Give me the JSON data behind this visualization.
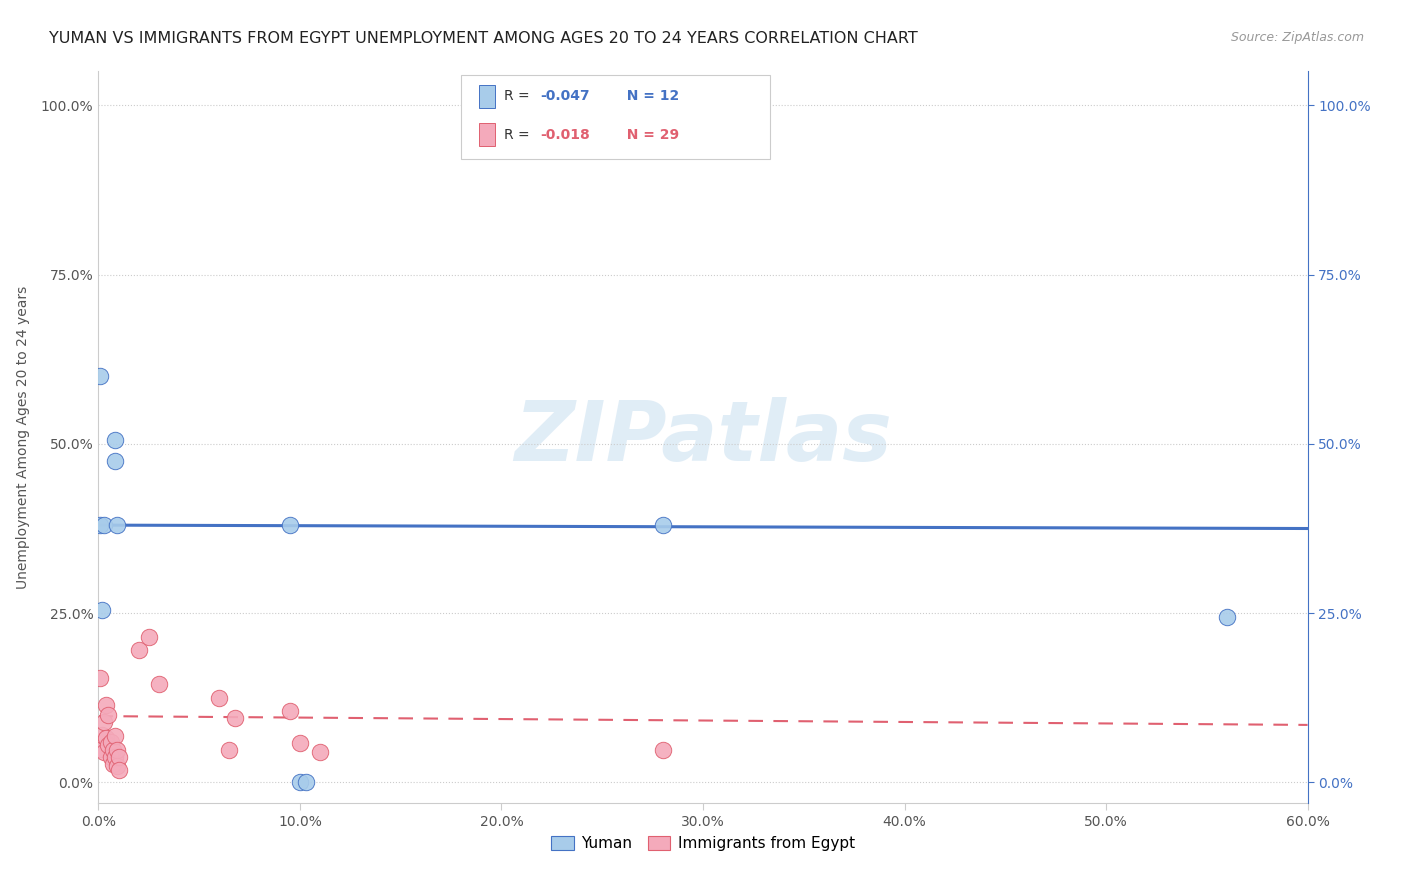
{
  "title": "YUMAN VS IMMIGRANTS FROM EGYPT UNEMPLOYMENT AMONG AGES 20 TO 24 YEARS CORRELATION CHART",
  "source": "Source: ZipAtlas.com",
  "ylabel": "Unemployment Among Ages 20 to 24 years",
  "xlim": [
    0.0,
    0.6
  ],
  "ylim": [
    -0.03,
    1.05
  ],
  "yuman_color": "#A8CCEA",
  "egypt_color": "#F4AABB",
  "yuman_line_color": "#4472C4",
  "egypt_line_color": "#E06070",
  "yuman_x": [
    0.001,
    0.001,
    0.002,
    0.003,
    0.008,
    0.008,
    0.009,
    0.095,
    0.1,
    0.103,
    0.28,
    0.56
  ],
  "yuman_y": [
    0.38,
    0.6,
    0.255,
    0.38,
    0.475,
    0.505,
    0.38,
    0.38,
    0.0,
    0.0,
    0.38,
    0.245
  ],
  "egypt_x": [
    0.001,
    0.001,
    0.002,
    0.003,
    0.003,
    0.004,
    0.004,
    0.005,
    0.005,
    0.006,
    0.006,
    0.007,
    0.007,
    0.008,
    0.008,
    0.009,
    0.009,
    0.01,
    0.01,
    0.02,
    0.025,
    0.03,
    0.06,
    0.065,
    0.068,
    0.095,
    0.1,
    0.11,
    0.28
  ],
  "egypt_y": [
    0.155,
    0.05,
    0.07,
    0.09,
    0.045,
    0.115,
    0.065,
    0.1,
    0.055,
    0.06,
    0.038,
    0.048,
    0.028,
    0.068,
    0.038,
    0.048,
    0.025,
    0.038,
    0.018,
    0.195,
    0.215,
    0.145,
    0.125,
    0.048,
    0.095,
    0.105,
    0.058,
    0.045,
    0.048
  ],
  "yuman_R": "-0.047",
  "yuman_N": "12",
  "egypt_R": "-0.018",
  "egypt_N": "29",
  "background_color": "#FFFFFF",
  "grid_color": "#CCCCCC",
  "watermark_text": "ZIPatlas",
  "watermark_color": "#C8DFF0",
  "xlabel_ticks": [
    "0.0%",
    "10.0%",
    "20.0%",
    "30.0%",
    "40.0%",
    "50.0%",
    "60.0%"
  ],
  "xlabel_vals": [
    0.0,
    0.1,
    0.2,
    0.3,
    0.4,
    0.5,
    0.6
  ],
  "ylabel_ticks_left": [
    "0.0%",
    "25.0%",
    "50.0%",
    "75.0%",
    "100.0%"
  ],
  "ylabel_vals": [
    0.0,
    0.25,
    0.5,
    0.75,
    1.0
  ],
  "ylabel_ticks_right": [
    "0.0%",
    "25.0%",
    "50.0%",
    "75.0%",
    "100.0%"
  ],
  "right_tick_color": "#4472C4"
}
